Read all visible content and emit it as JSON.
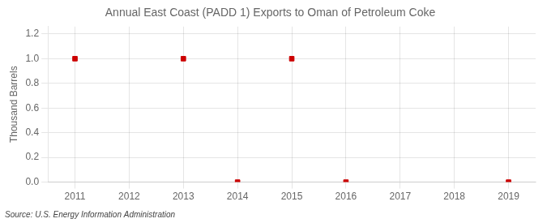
{
  "chart_data": {
    "type": "scatter",
    "title": "Annual East Coast (PADD 1) Exports to Oman of Petroleum Coke",
    "y_label": "Thousand Barrels",
    "source": "Source: U.S. Energy Information Administration",
    "x": [
      2011,
      2013,
      2014,
      2015,
      2016,
      2019
    ],
    "values": [
      1.0,
      1.0,
      0.0,
      1.0,
      0.0,
      0.0
    ],
    "color": "#cc0000",
    "marker": "square",
    "xlim": [
      2010.5,
      2019.5
    ],
    "xticks": [
      2011,
      2012,
      2013,
      2014,
      2015,
      2016,
      2017,
      2018,
      2019
    ],
    "ylim": [
      0.0,
      1.26
    ],
    "yticks": [
      {
        "value": 0.0,
        "label": "0.0"
      },
      0.2,
      0.4,
      0.6,
      0.8,
      {
        "value": 1.0,
        "label": "1.0"
      },
      1.2
    ],
    "grid": true
  }
}
